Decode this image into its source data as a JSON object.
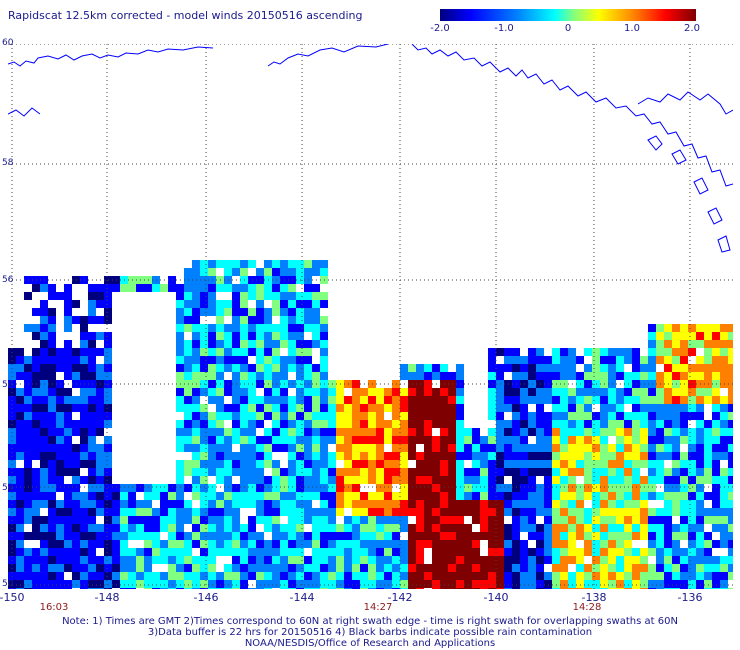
{
  "title": "Rapidscat 12.5km corrected - model winds 20150516 ascending",
  "legend": {
    "labels": [
      "-2.0",
      "-1.0",
      "0",
      "1.0",
      "2.0"
    ],
    "range": [
      -2.0,
      2.0
    ],
    "colors": [
      "#00007f",
      "#0000ff",
      "#0080ff",
      "#00ffff",
      "#80ff80",
      "#ffff00",
      "#ff8000",
      "#ff0000",
      "#7f0000"
    ]
  },
  "axes": {
    "lon_labels": [
      "-150",
      "-148",
      "-146",
      "-144",
      "-142",
      "-140",
      "-138",
      "-136"
    ],
    "lat_labels": [
      "60",
      "58",
      "56",
      "54",
      "52",
      "50"
    ],
    "lon_range": [
      -150,
      -135.3
    ],
    "lat_range": [
      50,
      60
    ]
  },
  "times": [
    {
      "label": "16:03",
      "lon": -149.7
    },
    {
      "label": "14:27",
      "lon": -142.3
    },
    {
      "label": "14:28",
      "lon": -137.6
    }
  ],
  "notes": {
    "line1": "Note: 1) Times are GMT 2)Times correspond to 60N at right swath edge - time is right swath for overlapping swaths at 60N",
    "line2": "3)Data buffer is 22 hrs for 20150516 4) Black barbs indicate possible rain contamination",
    "line3": "NOAA/NESDIS/Office of Research and Applications"
  },
  "colors": {
    "text": "#1a1a8c",
    "time_text": "#8b1a1a",
    "coastline": "#0000ff",
    "grid": "#444444"
  }
}
